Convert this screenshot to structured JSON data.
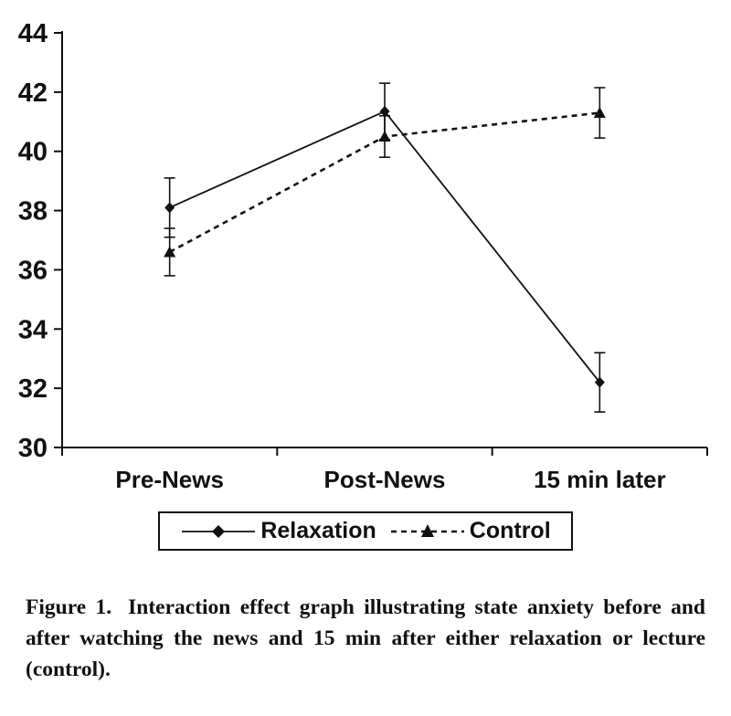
{
  "chart_data": {
    "type": "line",
    "title": "",
    "xlabel": "",
    "ylabel": "",
    "categories": [
      "Pre-News",
      "Post-News",
      "15 min later"
    ],
    "ylim": [
      30,
      44
    ],
    "yticks": [
      30,
      32,
      34,
      36,
      38,
      40,
      42,
      44
    ],
    "grid": false,
    "legend_position": "bottom",
    "series": [
      {
        "name": "Relaxation",
        "values": [
          38.1,
          41.35,
          32.2
        ],
        "errors": [
          1.0,
          0.95,
          1.0
        ],
        "marker": "diamond",
        "line_style": "solid"
      },
      {
        "name": "Control",
        "values": [
          36.6,
          40.5,
          41.3
        ],
        "errors": [
          0.8,
          0.7,
          0.85
        ],
        "marker": "triangle",
        "line_style": "dashed"
      }
    ]
  },
  "caption": {
    "label": "Figure 1.",
    "text": "Interaction effect graph illustrating state anxiety before and after watching the news and 15 min after either relaxation or lecture (control)."
  },
  "colors": {
    "ink": "#111111",
    "background": "#ffffff"
  }
}
